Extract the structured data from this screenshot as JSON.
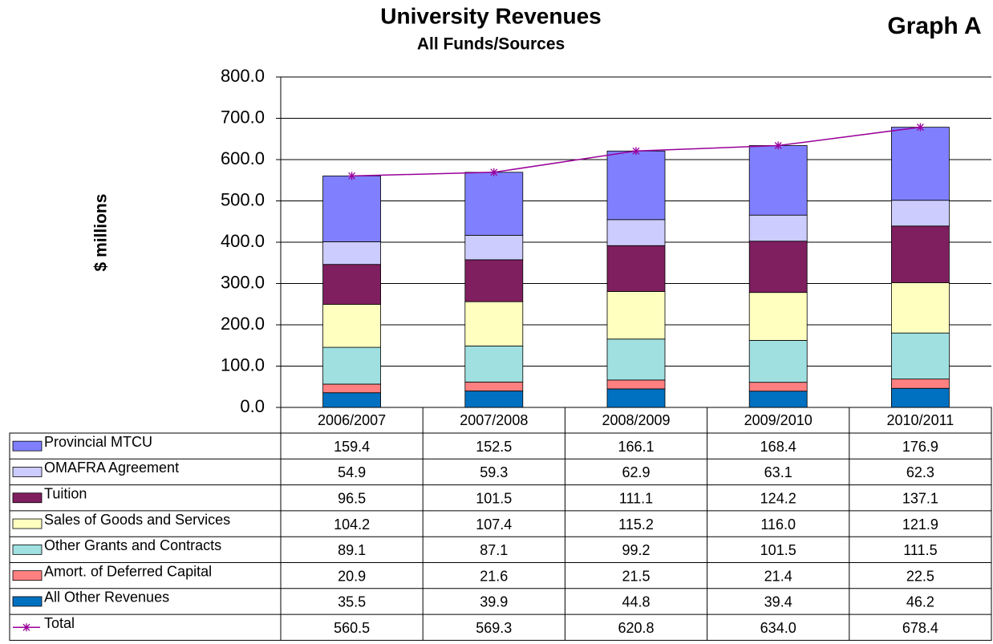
{
  "chart_data": {
    "type": "bar",
    "stacked": true,
    "title": "University Revenues",
    "subtitle": "All Funds/Sources",
    "annotation": "Graph A",
    "y_label": "$ millions",
    "categories": [
      "2006/2007",
      "2007/2008",
      "2008/2009",
      "2009/2010",
      "2010/2011"
    ],
    "series": [
      {
        "name": "Provincial MTCU",
        "color": "#8080ff",
        "values": [
          159.4,
          152.5,
          166.1,
          168.4,
          176.9
        ]
      },
      {
        "name": "OMAFRA Agreement",
        "color": "#ccccff",
        "values": [
          54.9,
          59.3,
          62.9,
          63.1,
          62.3
        ]
      },
      {
        "name": "Tuition",
        "color": "#7f1f5f",
        "values": [
          96.5,
          101.5,
          111.1,
          124.2,
          137.1
        ]
      },
      {
        "name": "Sales of Goods and Services",
        "color": "#ffffc0",
        "values": [
          104.2,
          107.4,
          115.2,
          116.0,
          121.9
        ],
        "value_labels": [
          "104.2",
          "107.4",
          "115.2",
          "116.0",
          "121.9"
        ]
      },
      {
        "name": "Other Grants and Contracts",
        "color": "#a0e0e0",
        "values": [
          89.1,
          87.1,
          99.2,
          101.5,
          111.5
        ]
      },
      {
        "name": "Amort. of Deferred Capital",
        "color": "#ff8080",
        "values": [
          20.9,
          21.6,
          21.5,
          21.4,
          22.5
        ]
      },
      {
        "name": "All Other Revenues",
        "color": "#0070c0",
        "values": [
          35.5,
          39.9,
          44.8,
          39.4,
          46.2
        ]
      },
      {
        "name": "Total",
        "type": "line",
        "color": "#990099",
        "values": [
          560.5,
          569.3,
          620.8,
          634.0,
          678.4
        ],
        "value_labels": [
          "560.5",
          "569.3",
          "620.8",
          "634.0",
          "678.4"
        ]
      }
    ],
    "ylim": [
      0,
      800
    ],
    "yticks": [
      {
        "value": 0,
        "label": "0.0"
      },
      {
        "value": 100,
        "label": "100.0"
      },
      {
        "value": 200,
        "label": "200.0"
      },
      {
        "value": 300,
        "label": "300.0"
      },
      {
        "value": 400,
        "label": "400.0"
      },
      {
        "value": 500,
        "label": "500.0"
      },
      {
        "value": 600,
        "label": "600.0"
      },
      {
        "value": 700,
        "label": "700.0"
      },
      {
        "value": 800,
        "label": "800.0"
      }
    ],
    "grid": true
  }
}
